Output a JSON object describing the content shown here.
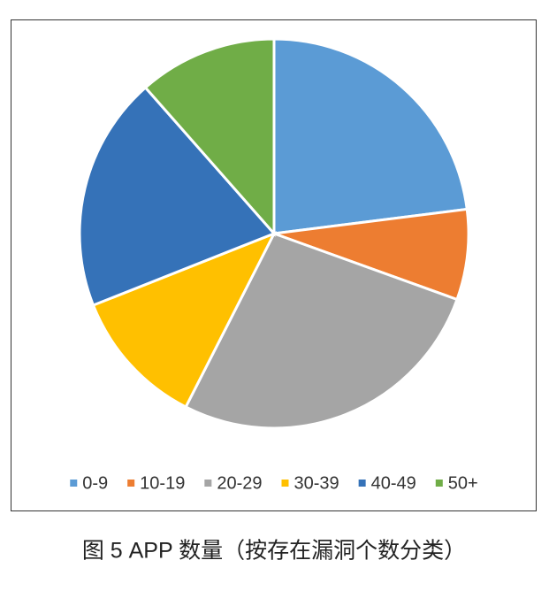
{
  "chart_data": {
    "type": "pie",
    "title": "图 5 APP 数量（按存在漏洞个数分类）",
    "categories": [
      "0-9",
      "10-19",
      "20-29",
      "30-39",
      "40-49",
      "50+"
    ],
    "values": [
      23,
      7.5,
      27,
      11.5,
      19.5,
      11.5
    ],
    "colors": [
      "#5b9bd5",
      "#ed7d31",
      "#a5a5a5",
      "#ffc000",
      "#3572b8",
      "#70ad47"
    ],
    "legend": "bottom"
  }
}
